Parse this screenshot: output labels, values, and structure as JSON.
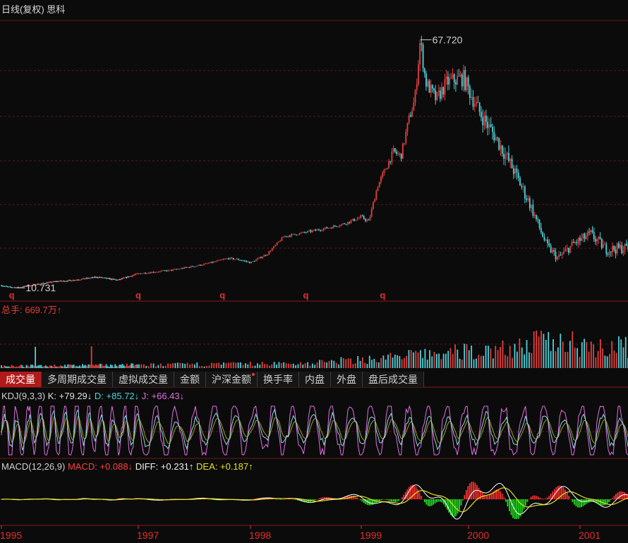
{
  "title": "日线(复权) 思科",
  "colors": {
    "up": "#e04040",
    "down": "#4fd1d9",
    "grid": "#5a1818",
    "axis_text": "#e03030",
    "k": "#d9d9d9",
    "d": "#e6e020",
    "j": "#e070e0",
    "diff": "#ffffff",
    "dea": "#e6e020",
    "macd_up": "#ff3030",
    "macd_down": "#20e020"
  },
  "tabs": [
    {
      "label": "成交量",
      "active": true,
      "dot": false
    },
    {
      "label": "多周期成交量",
      "active": false,
      "dot": false
    },
    {
      "label": "虚拟成交量",
      "active": false,
      "dot": false
    },
    {
      "label": "金额",
      "active": false,
      "dot": false
    },
    {
      "label": "沪深金额",
      "active": false,
      "dot": true
    },
    {
      "label": "换手率",
      "active": false,
      "dot": false
    },
    {
      "label": "内盘",
      "active": false,
      "dot": false
    },
    {
      "label": "外盘",
      "active": false,
      "dot": false
    },
    {
      "label": "盘后成交量",
      "active": false,
      "dot": false
    }
  ],
  "volume": {
    "label": "总手: 669.7万↑"
  },
  "kdj": {
    "name": "KDJ(9,3,3)",
    "k_label": "K: +79.29↓",
    "d_label": "D: +85.72↓",
    "j_label": "J: +66.43↓"
  },
  "macd": {
    "name": "MACD(12,26,9)",
    "macd_label": "MACD: +0.088↓",
    "diff_label": "DIFF: +0.231↑",
    "dea_label": "DEA: +0.187↑"
  },
  "chart_data": {
    "type": "candlestick",
    "title": "日线(复权) 思科",
    "max_label": "67.720",
    "min_label": "10.731",
    "max_value": 67.72,
    "min_value": 10.731,
    "x_ticks": [
      "1995",
      "1997",
      "1998",
      "1999",
      "2000",
      "2001"
    ],
    "x_tick_dates": [
      1995.0,
      1997.0,
      1998.0,
      1999.0,
      2000.0,
      2001.0
    ],
    "x_range": [
      1995.0,
      2001.45
    ],
    "y_range": [
      8.0,
      72.0
    ],
    "event_marker": "q",
    "event_dates": [
      1995.15,
      1997.0,
      1997.75,
      1998.5,
      1999.2
    ],
    "price_path": [
      [
        1995.0,
        11.3
      ],
      [
        1995.1,
        10.9
      ],
      [
        1995.25,
        10.8
      ],
      [
        1995.5,
        11.5
      ],
      [
        1995.8,
        12.2
      ],
      [
        1996.0,
        12.4
      ],
      [
        1996.4,
        13.2
      ],
      [
        1996.7,
        12.5
      ],
      [
        1997.0,
        14.0
      ],
      [
        1997.3,
        14.8
      ],
      [
        1997.6,
        16.2
      ],
      [
        1997.8,
        17.5
      ],
      [
        1997.9,
        17.2
      ],
      [
        1998.0,
        16.5
      ],
      [
        1998.15,
        18.5
      ],
      [
        1998.3,
        22.5
      ],
      [
        1998.5,
        23.5
      ],
      [
        1998.7,
        24.5
      ],
      [
        1998.85,
        25.5
      ],
      [
        1999.0,
        27.0
      ],
      [
        1999.07,
        26.0
      ],
      [
        1999.15,
        34.0
      ],
      [
        1999.3,
        42.0
      ],
      [
        1999.37,
        41.0
      ],
      [
        1999.45,
        50.0
      ],
      [
        1999.5,
        54.0
      ],
      [
        1999.55,
        67.7
      ],
      [
        1999.6,
        58.0
      ],
      [
        1999.7,
        54.0
      ],
      [
        1999.8,
        58.0
      ],
      [
        1999.95,
        59.0
      ],
      [
        2000.1,
        51.0
      ],
      [
        2000.25,
        45.0
      ],
      [
        2000.4,
        38.0
      ],
      [
        2000.55,
        30.0
      ],
      [
        2000.7,
        20.5
      ],
      [
        2000.8,
        17.5
      ],
      [
        2000.95,
        21.0
      ],
      [
        2001.1,
        23.0
      ],
      [
        2001.25,
        19.5
      ],
      [
        2001.45,
        20.0
      ]
    ],
    "volume_profile": [
      [
        1995.0,
        0.05
      ],
      [
        1997.0,
        0.08
      ],
      [
        1998.5,
        0.12
      ],
      [
        1999.2,
        0.25
      ],
      [
        1999.6,
        0.35
      ],
      [
        2000.2,
        0.45
      ],
      [
        2000.8,
        0.7
      ],
      [
        2001.45,
        0.5
      ]
    ],
    "kdj_range": [
      0,
      100
    ],
    "macd_profile": [
      [
        1995.0,
        0.05
      ],
      [
        1998.0,
        0.15
      ],
      [
        1998.8,
        0.5
      ],
      [
        1999.3,
        1.0
      ],
      [
        1999.6,
        2.2
      ],
      [
        2000.2,
        2.6
      ],
      [
        2000.8,
        1.6
      ],
      [
        2001.45,
        0.8
      ]
    ]
  }
}
